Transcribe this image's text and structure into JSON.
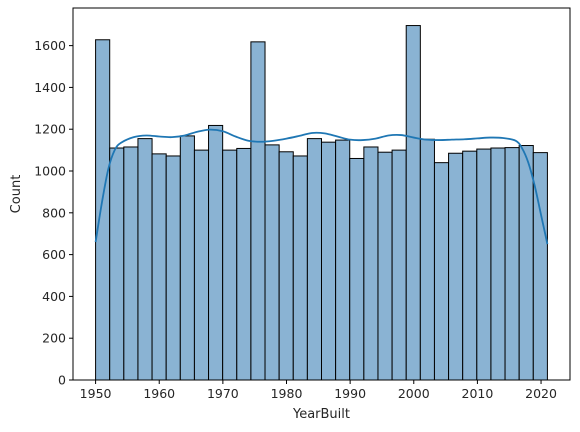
{
  "chart_data": {
    "type": "bar",
    "xlabel": "YearBuilt",
    "ylabel": "Count",
    "xlim": [
      1946.45,
      2024.55
    ],
    "ylim": [
      0,
      1780
    ],
    "x_ticks": [
      1950,
      1960,
      1970,
      1980,
      1990,
      2000,
      2010,
      2020
    ],
    "y_ticks": [
      0,
      200,
      400,
      600,
      800,
      1000,
      1200,
      1400,
      1600
    ],
    "bins": {
      "start": 1950,
      "end": 2021,
      "count": 32,
      "counts": [
        1628,
        1110,
        1115,
        1155,
        1082,
        1072,
        1168,
        1100,
        1218,
        1100,
        1108,
        1618,
        1125,
        1092,
        1072,
        1155,
        1138,
        1148,
        1060,
        1115,
        1090,
        1100,
        1696,
        1152,
        1040,
        1085,
        1095,
        1105,
        1110,
        1112,
        1122,
        1088
      ]
    },
    "kde": {
      "x": [
        1950,
        1951,
        1952,
        1953,
        1954,
        1956,
        1958,
        1960,
        1962,
        1964,
        1966,
        1968,
        1970,
        1972,
        1974,
        1976,
        1978,
        1980,
        1982,
        1984,
        1986,
        1988,
        1990,
        1992,
        1994,
        1996,
        1998,
        2000,
        2002,
        2004,
        2006,
        2008,
        2010,
        2012,
        2014,
        2016,
        2017,
        2018,
        2019,
        2020,
        2021
      ],
      "y": [
        660,
        850,
        1010,
        1100,
        1135,
        1162,
        1170,
        1165,
        1162,
        1170,
        1188,
        1198,
        1190,
        1165,
        1145,
        1140,
        1145,
        1155,
        1168,
        1182,
        1180,
        1165,
        1150,
        1148,
        1155,
        1170,
        1172,
        1160,
        1150,
        1148,
        1150,
        1152,
        1156,
        1160,
        1158,
        1145,
        1110,
        1040,
        930,
        790,
        650
      ]
    },
    "colors": {
      "bar_fill": "#8ab3d3",
      "bar_edge": "#000000",
      "kde_line": "#1f77b4"
    },
    "grid": false,
    "legend": "none"
  }
}
